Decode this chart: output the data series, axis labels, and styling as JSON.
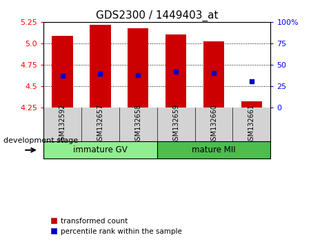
{
  "title": "GDS2300 / 1449403_at",
  "categories": [
    "GSM132592",
    "GSM132657",
    "GSM132658",
    "GSM132659",
    "GSM132660",
    "GSM132661"
  ],
  "bar_top_values": [
    5.09,
    5.22,
    5.18,
    5.1,
    5.02,
    4.32
  ],
  "bar_bottom": 4.25,
  "blue_marker_values": [
    4.62,
    4.64,
    4.63,
    4.67,
    4.65,
    4.555
  ],
  "bar_color": "#CC0000",
  "blue_color": "#0000CC",
  "ylim_left": [
    4.25,
    5.25
  ],
  "ylim_right": [
    0,
    100
  ],
  "yticks_left": [
    4.25,
    4.5,
    4.75,
    5.0,
    5.25
  ],
  "yticks_right": [
    0,
    25,
    50,
    75,
    100
  ],
  "ytick_labels_right": [
    "0",
    "25",
    "50",
    "75",
    "100%"
  ],
  "group_labels": [
    "immature GV",
    "mature MII"
  ],
  "group_ranges": [
    [
      0,
      3
    ],
    [
      3,
      6
    ]
  ],
  "group_color_light": "#90EE90",
  "group_color_dark": "#4DBD4D",
  "sample_label_bg": "#D3D3D3",
  "xlabel_annotation": "development stage",
  "legend_items": [
    "transformed count",
    "percentile rank within the sample"
  ],
  "bar_width": 0.55,
  "title_fontsize": 11,
  "tick_fontsize": 8,
  "label_fontsize": 7
}
